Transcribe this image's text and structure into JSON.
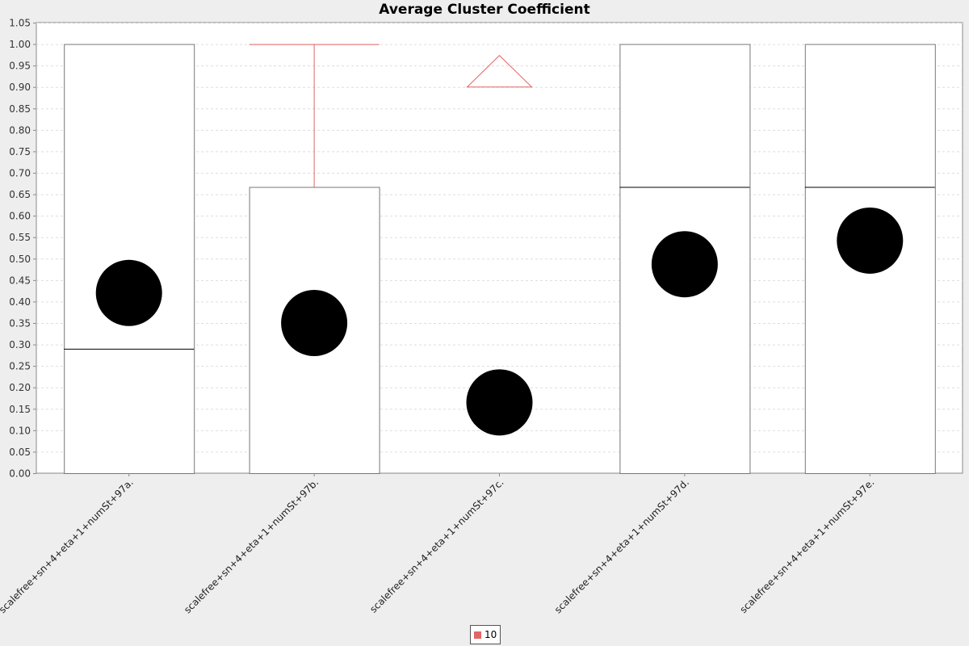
{
  "chart_data": {
    "type": "boxplot",
    "title": "Average Cluster Coefficient",
    "xlabel": "",
    "ylabel": "",
    "ylim": [
      0,
      1.05
    ],
    "y_ticks": [
      "0.00",
      "0.05",
      "0.10",
      "0.15",
      "0.20",
      "0.25",
      "0.30",
      "0.35",
      "0.40",
      "0.45",
      "0.50",
      "0.55",
      "0.60",
      "0.65",
      "0.70",
      "0.75",
      "0.80",
      "0.85",
      "0.90",
      "0.95",
      "1.00",
      "1.05"
    ],
    "grid": true,
    "legend_position": "bottom-center",
    "series": [
      {
        "name": "10",
        "color": "#e06666",
        "categories": [
          {
            "label": "scalefree+sn+4+eta+1+numSt+97a.",
            "q1": 0.0,
            "median": 0.29,
            "q3": 1.0,
            "whisker_low": 0.0,
            "whisker_high": 1.0,
            "mean": 0.42,
            "outliers": []
          },
          {
            "label": "scalefree+sn+4+eta+1+numSt+97b.",
            "q1": 0.0,
            "median": 0.0,
            "q3": 0.667,
            "whisker_low": 0.0,
            "whisker_high": 1.0,
            "mean": 0.35,
            "outliers": []
          },
          {
            "label": "scalefree+sn+4+eta+1+numSt+97c.",
            "q1": 0.0,
            "median": 0.0,
            "q3": 0.0,
            "whisker_low": 0.0,
            "whisker_high": 0.0,
            "mean": 0.165,
            "outliers": [],
            "far_outlier_above": 0.9
          },
          {
            "label": "scalefree+sn+4+eta+1+numSt+97d.",
            "q1": 0.0,
            "median": 0.667,
            "q3": 1.0,
            "whisker_low": 0.0,
            "whisker_high": 1.0,
            "mean": 0.487,
            "outliers": []
          },
          {
            "label": "scalefree+sn+4+eta+1+numSt+97e.",
            "q1": 0.0,
            "median": 0.667,
            "q3": 1.0,
            "whisker_low": 0.0,
            "whisker_high": 1.0,
            "mean": 0.542,
            "outliers": []
          }
        ]
      }
    ]
  }
}
